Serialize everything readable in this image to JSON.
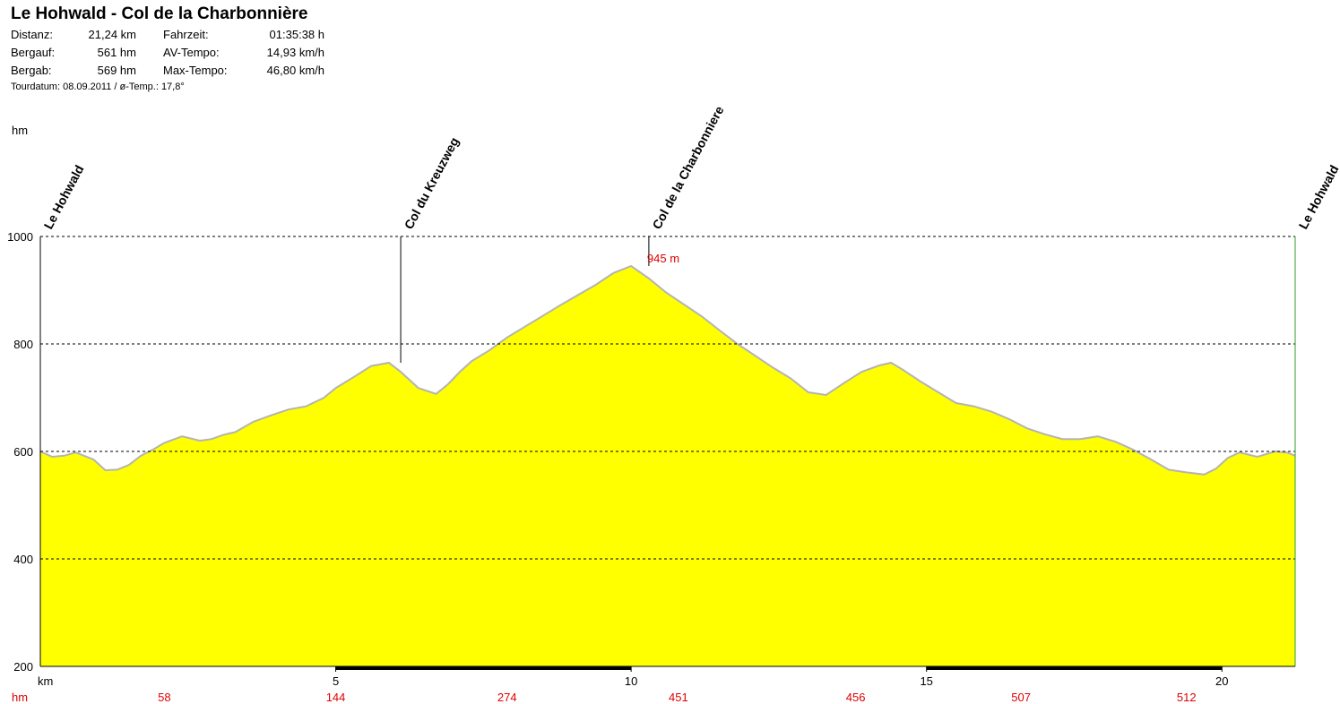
{
  "header": {
    "title": "Le Hohwald - Col de la Charbonnière",
    "stats": [
      {
        "k1": "Distanz:",
        "v1": "21,24 km",
        "k2": "Fahrzeit:",
        "v2": "01:35:38 h"
      },
      {
        "k1": "Bergauf:",
        "v1": "561 hm",
        "k2": "AV-Tempo:",
        "v2": "14,93 km/h"
      },
      {
        "k1": "Bergab:",
        "v1": "569 hm",
        "k2": "Max-Tempo:",
        "v2": "46,80 km/h"
      }
    ],
    "tour_line": "Tourdatum: 08.09.2011  /  ø-Temp.: 17,8°"
  },
  "colors": {
    "fill": "#ffff00",
    "outline": "#b4b4b4",
    "grid": "#000000",
    "accent_red": "#e00000",
    "right_edge": "#2e9e2e"
  },
  "chart_data": {
    "type": "area",
    "ylabel": "hm",
    "xlabel": "km",
    "xlim": [
      0,
      21.24
    ],
    "ylim": [
      200,
      1000
    ],
    "x_ticks": [
      5,
      10,
      15,
      20
    ],
    "y_ticks": [
      200,
      400,
      600,
      800,
      1000
    ],
    "grid": "horizontal dashed",
    "series": [
      {
        "x": [
          0,
          0.2,
          0.4,
          0.6,
          0.9,
          1.1,
          1.3,
          1.5,
          1.7,
          1.9,
          2.1,
          2.4,
          2.7,
          2.9,
          3.1,
          3.3,
          3.6,
          3.9,
          4.2,
          4.5,
          4.8,
          5.0,
          5.3,
          5.6,
          5.9,
          6.1,
          6.4,
          6.7,
          6.9,
          7.1,
          7.3,
          7.6,
          7.9,
          8.2,
          8.5,
          8.8,
          9.1,
          9.4,
          9.7,
          10.0,
          10.3,
          10.6,
          10.9,
          11.2,
          11.5,
          11.8,
          12.1,
          12.4,
          12.7,
          13.0,
          13.3,
          13.6,
          13.9,
          14.2,
          14.4,
          14.6,
          14.9,
          15.2,
          15.5,
          15.8,
          16.1,
          16.4,
          16.7,
          17.0,
          17.3,
          17.6,
          17.9,
          18.2,
          18.5,
          18.8,
          19.1,
          19.4,
          19.7,
          19.9,
          20.1,
          20.3,
          20.6,
          20.9,
          21.1,
          21.24
        ],
        "y": [
          600,
          590,
          592,
          598,
          585,
          565,
          566,
          575,
          592,
          603,
          616,
          628,
          620,
          623,
          631,
          636,
          655,
          667,
          678,
          684,
          700,
          718,
          738,
          759,
          765,
          748,
          718,
          707,
          725,
          748,
          768,
          788,
          812,
          832,
          852,
          872,
          891,
          910,
          932,
          945,
          922,
          895,
          873,
          851,
          825,
          800,
          778,
          756,
          736,
          710,
          705,
          727,
          748,
          760,
          765,
          752,
          730,
          710,
          690,
          684,
          674,
          660,
          643,
          632,
          623,
          623,
          628,
          618,
          603,
          585,
          566,
          561,
          557,
          568,
          588,
          598,
          590,
          600,
          598,
          592
        ]
      }
    ],
    "waypoints": [
      {
        "name": "Le Hohwald",
        "km": 0,
        "label_bound": true
      },
      {
        "name": "Col du Kreuzweg",
        "km": 6.1,
        "hm": 765
      },
      {
        "name": "Col de la Charbonniere",
        "km": 10.3,
        "hm": 945
      },
      {
        "name": "Le Hohwald",
        "km": 21.24
      }
    ],
    "peak_annotation": {
      "text": "945 m",
      "km": 10.3,
      "hm": 945
    },
    "km_labels": [
      "5",
      "10",
      "15",
      "20"
    ],
    "hm_label": "hm",
    "km_label": "km",
    "hm_footer": [
      {
        "km": 2.1,
        "text": "58"
      },
      {
        "km": 5.0,
        "text": "144"
      },
      {
        "km": 7.9,
        "text": "274"
      },
      {
        "km": 10.8,
        "text": "451"
      },
      {
        "km": 13.8,
        "text": "456"
      },
      {
        "km": 16.6,
        "text": "507"
      },
      {
        "km": 19.4,
        "text": "512"
      }
    ],
    "black_bar_segments": [
      [
        5,
        10
      ],
      [
        15,
        20
      ]
    ]
  }
}
